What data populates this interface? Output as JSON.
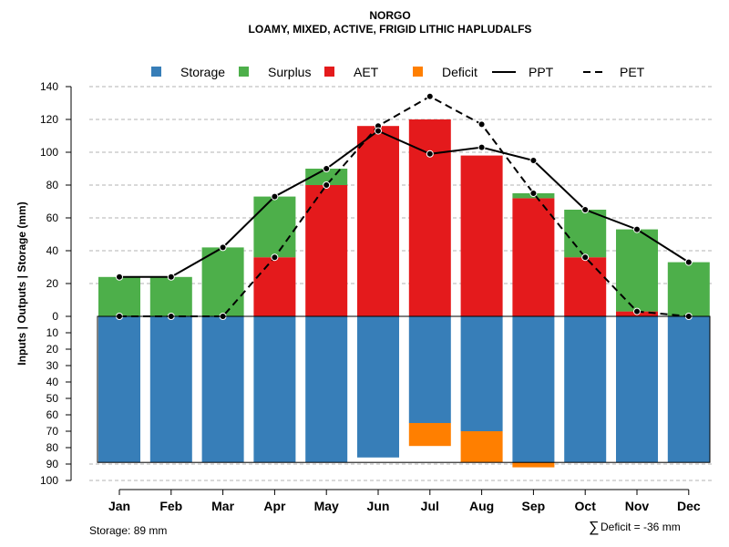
{
  "chart_data": {
    "type": "bar",
    "title": "NORGO",
    "subtitle": "LOAMY, MIXED, ACTIVE, FRIGID LITHIC HAPLUDALFS",
    "ylabel": "Inputs | Outputs | Storage    (mm)",
    "categories": [
      "Jan",
      "Feb",
      "Mar",
      "Apr",
      "May",
      "Jun",
      "Jul",
      "Aug",
      "Sep",
      "Oct",
      "Nov",
      "Dec"
    ],
    "ylim_top": [
      0,
      140
    ],
    "ylim_bottom": [
      0,
      100
    ],
    "y_ticks_top": [
      "140",
      "120",
      "100",
      "80",
      "60",
      "40",
      "20",
      "0"
    ],
    "y_ticks_bottom": [
      "10",
      "20",
      "30",
      "40",
      "50",
      "60",
      "70",
      "80",
      "90",
      "100"
    ],
    "legend": [
      "Storage",
      "Surplus",
      "AET",
      "Deficit",
      "PPT",
      "PET"
    ],
    "series": [
      {
        "name": "Storage",
        "color": "#377EB8",
        "values": [
          89,
          89,
          89,
          89,
          89,
          86,
          65,
          70,
          89,
          89,
          89,
          89
        ]
      },
      {
        "name": "Deficit",
        "color": "#FF7F00",
        "values": [
          0,
          0,
          0,
          0,
          0,
          0,
          14,
          19,
          3,
          0,
          0,
          0
        ]
      },
      {
        "name": "AET",
        "color": "#E41A1C",
        "values": [
          0,
          0,
          0,
          36,
          80,
          116,
          120,
          98,
          72,
          36,
          3,
          0
        ]
      },
      {
        "name": "Surplus",
        "color": "#4DAF4A",
        "values": [
          24,
          24,
          42,
          37,
          10,
          0,
          0,
          0,
          3,
          29,
          50,
          33
        ]
      },
      {
        "name": "PPT",
        "color": "#000000",
        "style": "solid",
        "values": [
          24,
          24,
          42,
          73,
          90,
          113,
          99,
          103,
          95,
          65,
          53,
          33
        ]
      },
      {
        "name": "PET",
        "color": "#000000",
        "style": "dashed",
        "values": [
          0,
          0,
          0,
          36,
          80,
          116,
          134,
          117,
          75,
          36,
          3,
          0
        ]
      }
    ],
    "grid": true,
    "legend_position": "top"
  },
  "footer": {
    "storage_label": "Storage: 89 mm",
    "deficit_symbol": "∑",
    "deficit_label": "Deficit = -36 mm"
  }
}
